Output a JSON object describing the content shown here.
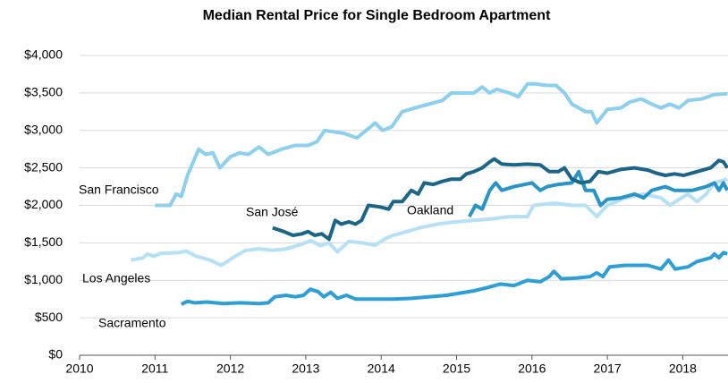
{
  "chart_data": {
    "type": "line",
    "title": "Median Rental Price for Single Bedroom Apartment",
    "xlim": [
      2010,
      2018.6
    ],
    "xticks": [
      2010,
      2011,
      2012,
      2013,
      2014,
      2015,
      2016,
      2017,
      2018
    ],
    "ylim": [
      0,
      4000
    ],
    "yticks": [
      {
        "value": 0,
        "label": "$0"
      },
      {
        "value": 500,
        "label": "$500"
      },
      {
        "value": 1000,
        "label": "$1,000"
      },
      {
        "value": 1500,
        "label": "$1,500"
      },
      {
        "value": 2000,
        "label": "$2,000"
      },
      {
        "value": 2500,
        "label": "$2,500"
      },
      {
        "value": 3000,
        "label": "$3,000"
      },
      {
        "value": 3500,
        "label": "$3,500"
      },
      {
        "value": 4000,
        "label": "$4,000"
      }
    ],
    "grid": true,
    "series": [
      {
        "name": "Los Angeles",
        "color": "#b6e0f4",
        "x": [
          2010.68,
          2010.84,
          2010.9,
          2010.98,
          2011.08,
          2011.32,
          2011.41,
          2011.55,
          2011.73,
          2011.88,
          2012.03,
          2012.2,
          2012.38,
          2012.56,
          2012.74,
          2012.91,
          2013.07,
          2013.19,
          2013.31,
          2013.42,
          2013.57,
          2013.74,
          2013.92,
          2014.06,
          2014.16,
          2014.34,
          2014.51,
          2014.75,
          2014.99,
          2015.23,
          2015.46,
          2015.7,
          2015.94,
          2016.02,
          2016.29,
          2016.53,
          2016.71,
          2016.86,
          2017.0,
          2017.24,
          2017.48,
          2017.71,
          2017.83,
          2017.95,
          2018.07,
          2018.19,
          2018.31,
          2018.42,
          2018.59
        ],
        "values": [
          1270,
          1300,
          1350,
          1320,
          1360,
          1370,
          1390,
          1320,
          1270,
          1200,
          1300,
          1400,
          1420,
          1400,
          1420,
          1470,
          1530,
          1460,
          1500,
          1380,
          1520,
          1500,
          1470,
          1560,
          1600,
          1650,
          1700,
          1750,
          1780,
          1800,
          1820,
          1850,
          1850,
          2000,
          2030,
          2000,
          2000,
          1850,
          2000,
          2100,
          2150,
          2100,
          2000,
          2080,
          2150,
          2050,
          2150,
          2300,
          2350
        ]
      },
      {
        "name": "San Francisco",
        "color": "#8ccfee",
        "x": [
          2011.0,
          2011.2,
          2011.28,
          2011.35,
          2011.43,
          2011.58,
          2011.67,
          2011.77,
          2011.86,
          2012.0,
          2012.12,
          2012.24,
          2012.38,
          2012.5,
          2012.68,
          2012.86,
          2013.03,
          2013.15,
          2013.25,
          2013.51,
          2013.68,
          2013.8,
          2013.92,
          2014.02,
          2014.14,
          2014.28,
          2014.45,
          2014.63,
          2014.81,
          2014.93,
          2015.23,
          2015.34,
          2015.44,
          2015.53,
          2015.7,
          2015.82,
          2015.94,
          2016.05,
          2016.2,
          2016.32,
          2016.43,
          2016.53,
          2016.71,
          2016.79,
          2016.86,
          2017.0,
          2017.18,
          2017.3,
          2017.45,
          2017.59,
          2017.71,
          2017.83,
          2017.95,
          2018.07,
          2018.25,
          2018.42,
          2018.59
        ],
        "values": [
          2000,
          2000,
          2150,
          2120,
          2400,
          2750,
          2680,
          2700,
          2500,
          2650,
          2700,
          2680,
          2780,
          2680,
          2750,
          2800,
          2800,
          2850,
          3000,
          2960,
          2900,
          3000,
          3100,
          3000,
          3050,
          3250,
          3300,
          3350,
          3400,
          3500,
          3500,
          3580,
          3500,
          3550,
          3500,
          3450,
          3620,
          3620,
          3600,
          3600,
          3500,
          3350,
          3250,
          3250,
          3100,
          3280,
          3300,
          3380,
          3420,
          3350,
          3300,
          3350,
          3300,
          3400,
          3420,
          3480,
          3490
        ]
      },
      {
        "name": "Sacramento",
        "color": "#2e9fd4",
        "x": [
          2011.35,
          2011.43,
          2011.53,
          2011.69,
          2011.91,
          2012.14,
          2012.38,
          2012.5,
          2012.59,
          2012.74,
          2012.86,
          2012.97,
          2013.06,
          2013.16,
          2013.24,
          2013.33,
          2013.42,
          2013.54,
          2013.66,
          2013.92,
          2014.16,
          2014.4,
          2014.63,
          2014.87,
          2015.05,
          2015.23,
          2015.4,
          2015.58,
          2015.76,
          2015.94,
          2016.11,
          2016.23,
          2016.29,
          2016.39,
          2016.59,
          2016.77,
          2016.86,
          2016.94,
          2017.03,
          2017.24,
          2017.54,
          2017.71,
          2017.81,
          2017.9,
          2018.07,
          2018.19,
          2018.37,
          2018.42,
          2018.48,
          2018.54,
          2018.59
        ],
        "values": [
          680,
          720,
          700,
          710,
          690,
          700,
          690,
          700,
          780,
          800,
          780,
          800,
          880,
          850,
          780,
          840,
          760,
          800,
          750,
          750,
          750,
          760,
          780,
          800,
          830,
          860,
          900,
          950,
          930,
          1000,
          980,
          1050,
          1120,
          1020,
          1030,
          1050,
          1100,
          1050,
          1180,
          1200,
          1200,
          1150,
          1270,
          1150,
          1180,
          1250,
          1300,
          1350,
          1300,
          1370,
          1350
        ]
      },
      {
        "name": "Oakland",
        "color": "#2a94c9",
        "x": [
          2015.17,
          2015.25,
          2015.34,
          2015.44,
          2015.52,
          2015.6,
          2015.76,
          2016.0,
          2016.11,
          2016.2,
          2016.35,
          2016.53,
          2016.62,
          2016.71,
          2016.82,
          2016.91,
          2017.0,
          2017.18,
          2017.36,
          2017.48,
          2017.59,
          2017.77,
          2017.89,
          2018.13,
          2018.31,
          2018.42,
          2018.48,
          2018.54,
          2018.59
        ],
        "values": [
          1850,
          2000,
          1950,
          2200,
          2300,
          2200,
          2250,
          2300,
          2200,
          2250,
          2280,
          2300,
          2450,
          2200,
          2200,
          2000,
          2080,
          2100,
          2150,
          2100,
          2200,
          2250,
          2200,
          2200,
          2250,
          2300,
          2200,
          2300,
          2200
        ]
      },
      {
        "name": "San José",
        "color": "#1b6688",
        "x": [
          2012.56,
          2012.71,
          2012.83,
          2012.95,
          2013.03,
          2013.12,
          2013.21,
          2013.31,
          2013.39,
          2013.47,
          2013.57,
          2013.66,
          2013.74,
          2013.83,
          2013.98,
          2014.1,
          2014.16,
          2014.28,
          2014.4,
          2014.49,
          2014.57,
          2014.69,
          2014.81,
          2014.93,
          2015.05,
          2015.13,
          2015.23,
          2015.34,
          2015.44,
          2015.5,
          2015.6,
          2015.76,
          2015.94,
          2016.11,
          2016.23,
          2016.35,
          2016.43,
          2016.53,
          2016.65,
          2016.77,
          2016.88,
          2017.0,
          2017.18,
          2017.36,
          2017.54,
          2017.65,
          2017.77,
          2017.89,
          2018.01,
          2018.19,
          2018.37,
          2018.48,
          2018.54,
          2018.59
        ],
        "values": [
          1700,
          1650,
          1600,
          1620,
          1650,
          1600,
          1620,
          1550,
          1800,
          1750,
          1780,
          1750,
          1800,
          2000,
          1980,
          1950,
          2050,
          2050,
          2200,
          2150,
          2300,
          2280,
          2320,
          2350,
          2350,
          2420,
          2450,
          2500,
          2580,
          2620,
          2550,
          2540,
          2550,
          2540,
          2450,
          2450,
          2500,
          2350,
          2300,
          2320,
          2450,
          2430,
          2480,
          2500,
          2470,
          2430,
          2400,
          2420,
          2400,
          2450,
          2500,
          2600,
          2580,
          2500
        ]
      }
    ]
  }
}
